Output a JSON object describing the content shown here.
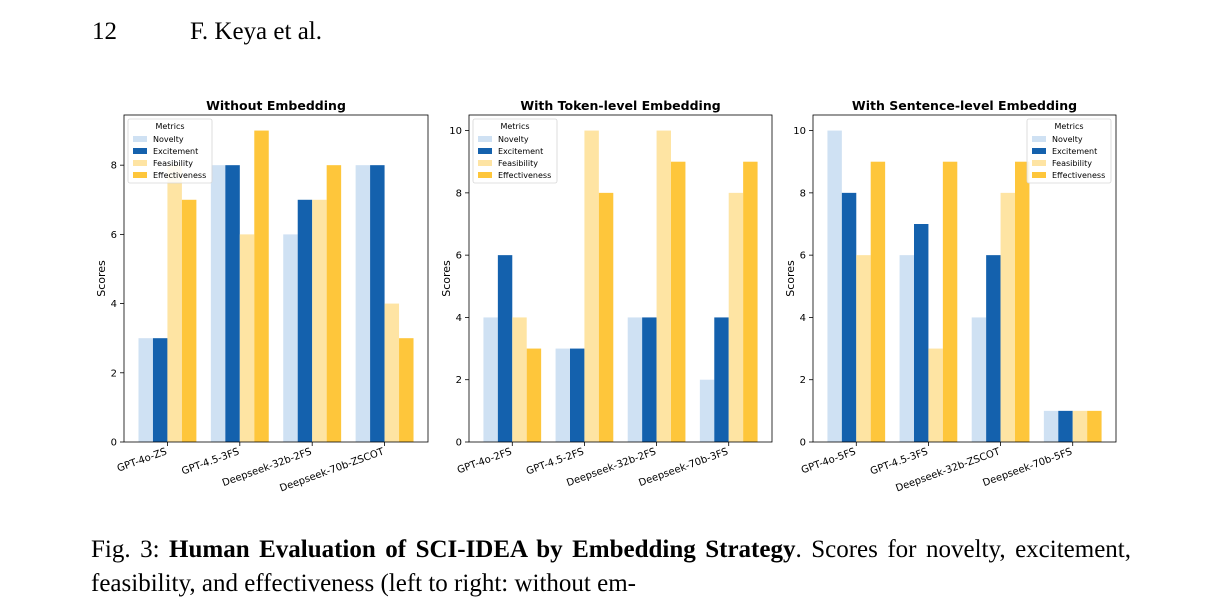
{
  "header": {
    "page_number": "12",
    "authors": "F. Keya et al."
  },
  "caption": {
    "label": "Fig. 3:",
    "title": "Human Evaluation of SCI-IDEA by Embedding Strategy",
    "text": ". Scores for novelty, excitement, feasibility, and effectiveness (left to right: without em-"
  },
  "colors": {
    "Novelty": "#cfe1f3",
    "Excitement": "#1461ad",
    "Feasibility": "#fee4a3",
    "Effectiveness": "#fec63b"
  },
  "chart_data": [
    {
      "type": "bar",
      "title": "Without Embedding",
      "ylabel": "Scores",
      "ylim": [
        0,
        9.45
      ],
      "yticks": [
        0,
        2,
        4,
        6,
        8
      ],
      "legend_title": "Metrics",
      "legend_position": "top-left",
      "categories": [
        "GPT-4o-ZS",
        "GPT-4.5-3FS",
        "Deepseek-32b-2FS",
        "Deepseek-70b-ZSCOT"
      ],
      "series": [
        {
          "name": "Novelty",
          "values": [
            3,
            8,
            6,
            8
          ]
        },
        {
          "name": "Excitement",
          "values": [
            3,
            8,
            7,
            8
          ]
        },
        {
          "name": "Feasibility",
          "values": [
            8,
            6,
            7,
            4
          ]
        },
        {
          "name": "Effectiveness",
          "values": [
            7,
            9,
            8,
            3
          ]
        }
      ]
    },
    {
      "type": "bar",
      "title": "With Token-level Embedding",
      "ylabel": "Scores",
      "ylim": [
        0,
        10.5
      ],
      "yticks": [
        0,
        2,
        4,
        6,
        8,
        10
      ],
      "legend_title": "Metrics",
      "legend_position": "top-left",
      "categories": [
        "GPT-4o-2FS",
        "GPT-4.5-2FS",
        "Deepseek-32b-2FS",
        "Deepseek-70b-3FS"
      ],
      "series": [
        {
          "name": "Novelty",
          "values": [
            4,
            3,
            4,
            2
          ]
        },
        {
          "name": "Excitement",
          "values": [
            6,
            3,
            4,
            4
          ]
        },
        {
          "name": "Feasibility",
          "values": [
            4,
            10,
            10,
            8
          ]
        },
        {
          "name": "Effectiveness",
          "values": [
            3,
            8,
            9,
            9
          ]
        }
      ]
    },
    {
      "type": "bar",
      "title": "With Sentence-level Embedding",
      "ylabel": "Scores",
      "ylim": [
        0,
        10.5
      ],
      "yticks": [
        0,
        2,
        4,
        6,
        8,
        10
      ],
      "legend_title": "Metrics",
      "legend_position": "top-right",
      "categories": [
        "GPT-4o-5FS",
        "GPT-4.5-3FS",
        "Deepseek-32b-ZSCOT",
        "Deepseek-70b-5FS"
      ],
      "series": [
        {
          "name": "Novelty",
          "values": [
            10,
            6,
            4,
            1
          ]
        },
        {
          "name": "Excitement",
          "values": [
            8,
            7,
            6,
            1
          ]
        },
        {
          "name": "Feasibility",
          "values": [
            6,
            3,
            8,
            1
          ]
        },
        {
          "name": "Effectiveness",
          "values": [
            9,
            9,
            9,
            1
          ]
        }
      ]
    }
  ]
}
